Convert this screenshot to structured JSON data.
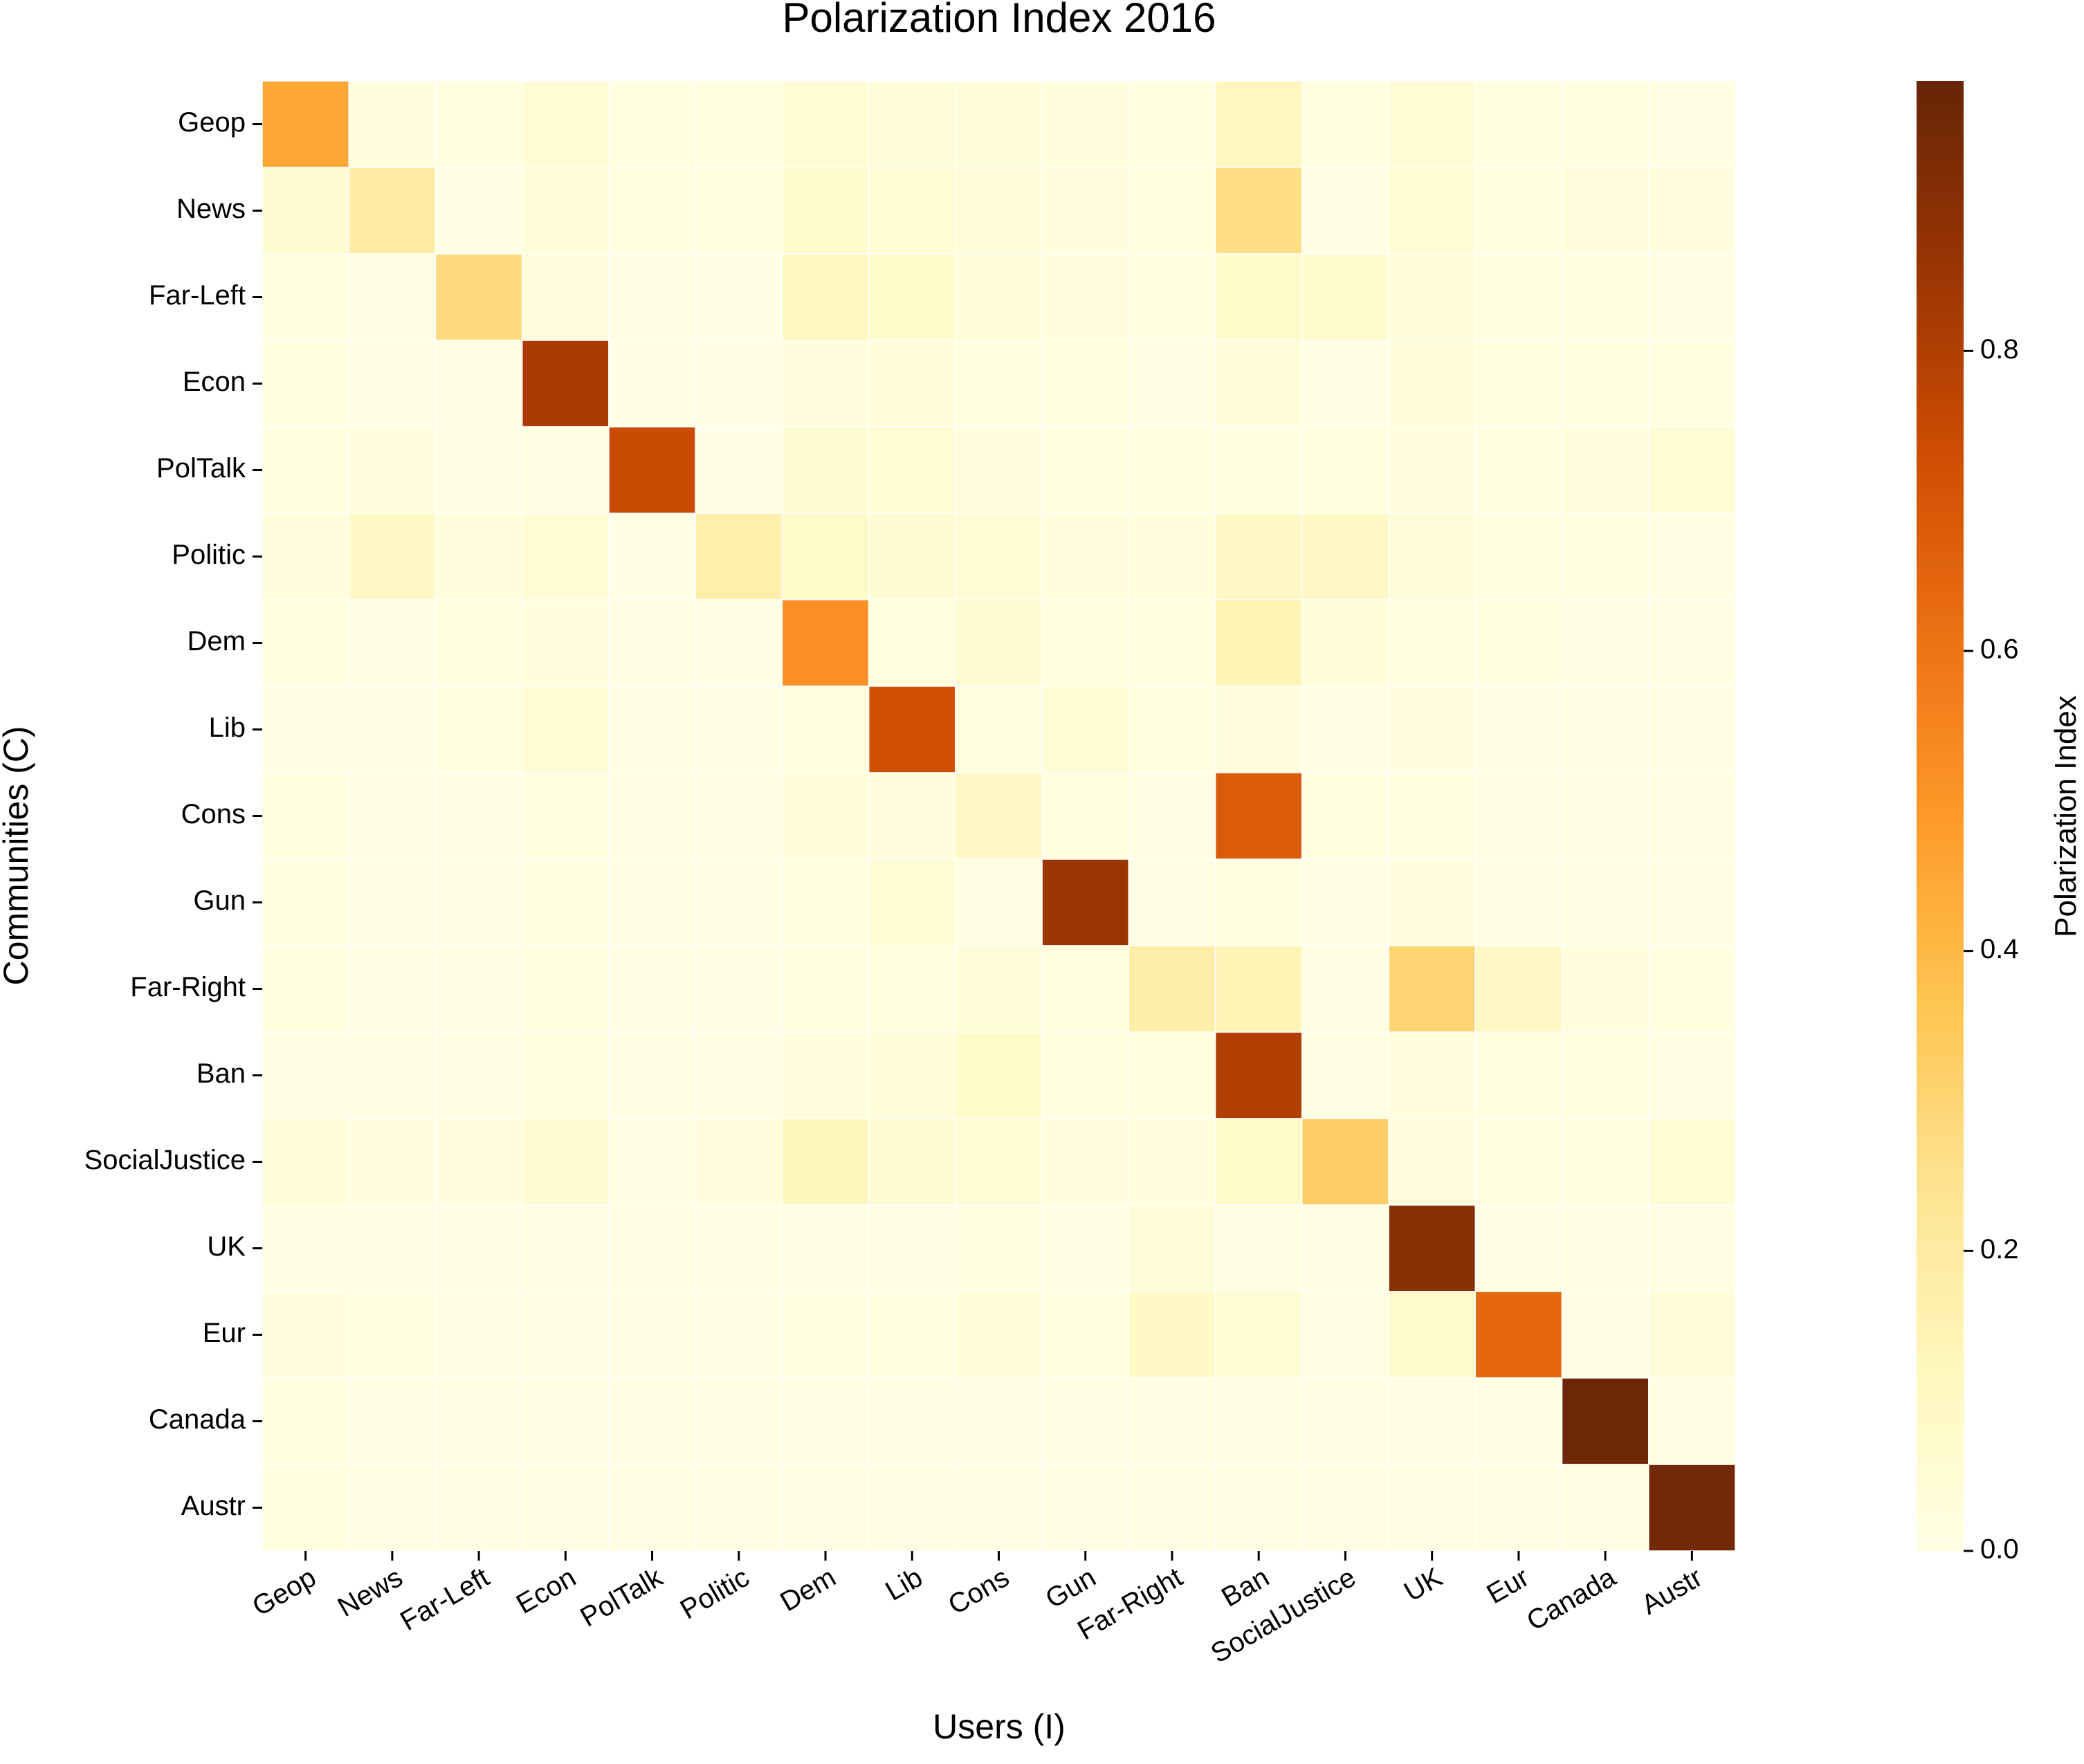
{
  "chart_data": {
    "type": "heatmap",
    "title": "Polarization Index 2016",
    "xlabel": "Users (I)",
    "ylabel": "Communities (C)",
    "x_categories": [
      "Geop",
      "News",
      "Far-Left",
      "Econ",
      "PolTalk",
      "Politic",
      "Dem",
      "Lib",
      "Cons",
      "Gun",
      "Far-Right",
      "Ban",
      "SocialJustice",
      "UK",
      "Eur",
      "Canada",
      "Austr"
    ],
    "y_categories": [
      "Geop",
      "News",
      "Far-Left",
      "Econ",
      "PolTalk",
      "Politic",
      "Dem",
      "Lib",
      "Cons",
      "Gun",
      "Far-Right",
      "Ban",
      "SocialJustice",
      "UK",
      "Eur",
      "Canada",
      "Austr"
    ],
    "values": [
      [
        0.45,
        0.03,
        0.02,
        0.05,
        0.02,
        0.02,
        0.05,
        0.04,
        0.04,
        0.03,
        0.02,
        0.12,
        0.02,
        0.05,
        0.02,
        0.02,
        0.01
      ],
      [
        0.06,
        0.19,
        0.0,
        0.04,
        0.02,
        0.02,
        0.07,
        0.05,
        0.04,
        0.03,
        0.02,
        0.27,
        0.01,
        0.05,
        0.02,
        0.03,
        0.03
      ],
      [
        0.02,
        0.01,
        0.28,
        0.03,
        0.01,
        0.0,
        0.12,
        0.08,
        0.04,
        0.03,
        0.02,
        0.08,
        0.07,
        0.04,
        0.02,
        0.02,
        0.01
      ],
      [
        0.02,
        0.01,
        0.01,
        0.82,
        0.0,
        0.0,
        0.03,
        0.04,
        0.02,
        0.02,
        0.01,
        0.04,
        0.01,
        0.04,
        0.02,
        0.02,
        0.02
      ],
      [
        0.02,
        0.03,
        0.01,
        0.01,
        0.74,
        0.0,
        0.06,
        0.05,
        0.03,
        0.02,
        0.02,
        0.02,
        0.02,
        0.03,
        0.02,
        0.03,
        0.05
      ],
      [
        0.03,
        0.1,
        0.03,
        0.05,
        0.0,
        0.17,
        0.08,
        0.06,
        0.05,
        0.03,
        0.03,
        0.1,
        0.1,
        0.04,
        0.02,
        0.02,
        0.01
      ],
      [
        0.02,
        0.01,
        0.02,
        0.03,
        0.01,
        0.0,
        0.52,
        0.02,
        0.06,
        0.02,
        0.02,
        0.15,
        0.04,
        0.02,
        0.02,
        0.01,
        0.01
      ],
      [
        0.01,
        0.01,
        0.02,
        0.05,
        0.01,
        0.01,
        0.02,
        0.72,
        0.02,
        0.05,
        0.02,
        0.03,
        0.01,
        0.03,
        0.01,
        0.01,
        0.01
      ],
      [
        0.02,
        0.01,
        0.01,
        0.02,
        0.01,
        0.01,
        0.04,
        0.03,
        0.1,
        0.02,
        0.01,
        0.68,
        0.02,
        0.02,
        0.01,
        0.01,
        0.01
      ],
      [
        0.02,
        0.01,
        0.01,
        0.02,
        0.01,
        0.01,
        0.02,
        0.05,
        0.01,
        0.85,
        0.01,
        0.02,
        0.01,
        0.03,
        0.01,
        0.01,
        0.01
      ],
      [
        0.02,
        0.01,
        0.01,
        0.02,
        0.01,
        0.01,
        0.02,
        0.02,
        0.04,
        0.02,
        0.18,
        0.14,
        0.01,
        0.3,
        0.1,
        0.03,
        0.02
      ],
      [
        0.01,
        0.01,
        0.01,
        0.02,
        0.01,
        0.01,
        0.03,
        0.04,
        0.08,
        0.02,
        0.02,
        0.8,
        0.01,
        0.03,
        0.02,
        0.02,
        0.01
      ],
      [
        0.04,
        0.03,
        0.03,
        0.06,
        0.01,
        0.03,
        0.13,
        0.06,
        0.05,
        0.03,
        0.03,
        0.08,
        0.33,
        0.03,
        0.02,
        0.02,
        0.05
      ],
      [
        0.01,
        0.01,
        0.01,
        0.01,
        0.01,
        0.01,
        0.01,
        0.01,
        0.02,
        0.01,
        0.04,
        0.01,
        0.01,
        0.9,
        0.01,
        0.01,
        0.01
      ],
      [
        0.03,
        0.02,
        0.01,
        0.01,
        0.01,
        0.01,
        0.02,
        0.02,
        0.04,
        0.02,
        0.09,
        0.05,
        0.01,
        0.07,
        0.64,
        0.01,
        0.04
      ],
      [
        0.02,
        0.01,
        0.01,
        0.01,
        0.01,
        0.01,
        0.01,
        0.01,
        0.01,
        0.01,
        0.01,
        0.01,
        0.01,
        0.01,
        0.01,
        0.96,
        0.01
      ],
      [
        0.02,
        0.01,
        0.01,
        0.01,
        0.01,
        0.01,
        0.01,
        0.01,
        0.01,
        0.01,
        0.01,
        0.01,
        0.01,
        0.01,
        0.01,
        0.01,
        0.95
      ]
    ],
    "colorbar": {
      "label": "Polarization Index",
      "min": 0.0,
      "max": 0.98,
      "ticks": [
        0.0,
        0.2,
        0.4,
        0.6,
        0.8
      ],
      "tick_labels": [
        "0.0",
        "0.2",
        "0.4",
        "0.6",
        "0.8"
      ],
      "colormap": [
        "#ffffe5",
        "#fff7bc",
        "#fee391",
        "#fec44f",
        "#fe9929",
        "#ec7014",
        "#cc4c02",
        "#993404",
        "#662506"
      ]
    },
    "grid": false,
    "cell_separator_color": "#ffffff"
  }
}
